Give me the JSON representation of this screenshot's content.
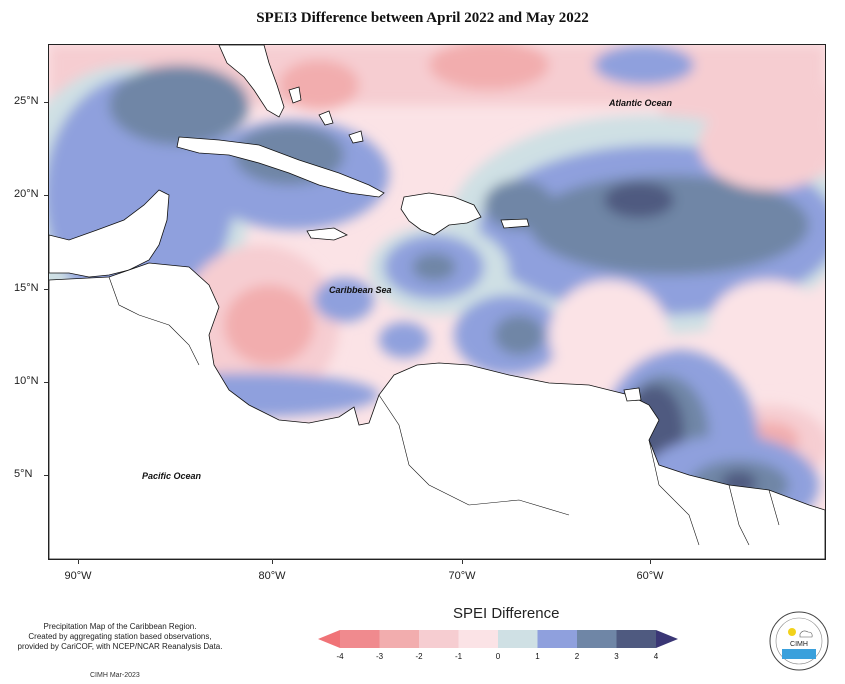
{
  "title": "SPEI3 Difference between April 2022 and May 2022",
  "map": {
    "labels": {
      "atlantic": "Atlantic Ocean",
      "caribbean": "Caribbean Sea",
      "pacific": "Pacific Ocean"
    },
    "lat_ticks": [
      "25°N",
      "20°N",
      "15°N",
      "10°N",
      "5°N"
    ],
    "lon_ticks": [
      "90°W",
      "80°W",
      "70°W",
      "60°W"
    ]
  },
  "legend": {
    "title": "SPEI Difference",
    "tick_labels": [
      "-4",
      "-3",
      "-2",
      "-1",
      "0",
      "1",
      "2",
      "3",
      "4"
    ],
    "colors": [
      "#f08a8e",
      "#f2adae",
      "#f6cdd1",
      "#fbe3e6",
      "#cfe0e4",
      "#8fa0dd",
      "#6f86a6",
      "#4f5a80"
    ],
    "arrow_left_color": "#f07377",
    "arrow_right_color": "#3a3675"
  },
  "credit": {
    "lines": [
      "Precipitation Map of the Caribbean Region.",
      "Created by aggregating station based observations,",
      "provided by CariCOF, with NCEP/NCAR Reanalysis Data."
    ],
    "date": "CIMH Mar-2023"
  },
  "logo": {
    "text": "CIMH",
    "icon": "cimh-sun-cloud-wave-logo"
  }
}
